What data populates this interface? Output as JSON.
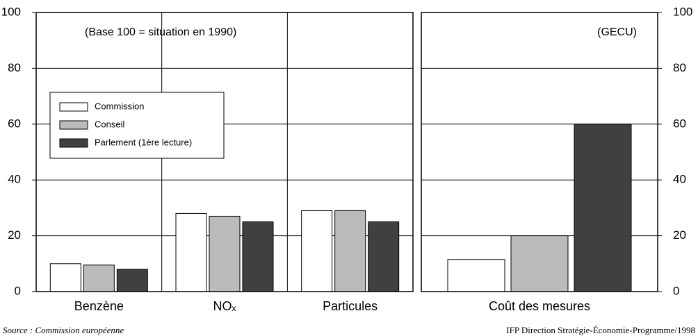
{
  "chart_data": [
    {
      "type": "bar",
      "annotation": "(Base 100 = situation en 1990)",
      "categories": [
        "Benzène",
        "NOₓ",
        "Particules"
      ],
      "series": [
        {
          "name": "Commission",
          "color": "#ffffff",
          "values": [
            10,
            28,
            29
          ]
        },
        {
          "name": "Conseil",
          "color": "#bbbbbb",
          "values": [
            9.5,
            27,
            29
          ]
        },
        {
          "name": "Parlement (1ère lecture)",
          "color": "#404040",
          "values": [
            8,
            25,
            25
          ]
        }
      ],
      "ylim": [
        0,
        100
      ],
      "yticks": [
        0,
        20,
        40,
        60,
        80,
        100
      ],
      "grid": true,
      "yaxis_position": "left",
      "legend": "upper left"
    },
    {
      "type": "bar",
      "annotation": "(GECU)",
      "categories": [
        "Coût des mesures"
      ],
      "series": [
        {
          "color": "#ffffff",
          "values": [
            11.5
          ]
        },
        {
          "color": "#bbbbbb",
          "values": [
            20
          ]
        },
        {
          "color": "#404040",
          "values": [
            60
          ]
        }
      ],
      "ylim": [
        0,
        100
      ],
      "yticks": [
        0,
        20,
        40,
        60,
        80,
        100
      ],
      "grid": true,
      "yaxis_position": "right"
    }
  ],
  "source": "Source : Commission européenne",
  "credit": "IFP Direction Stratégie-Économie-Programme/1998"
}
